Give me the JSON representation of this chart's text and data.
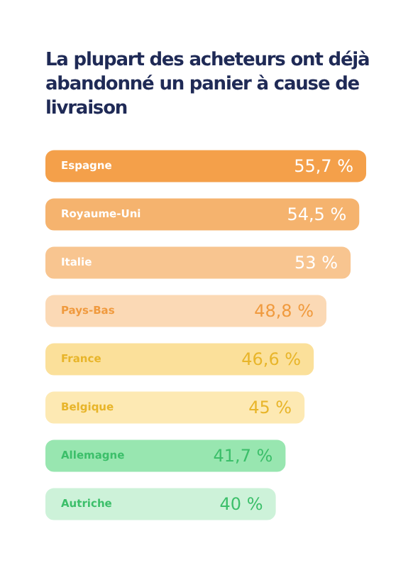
{
  "chart_data": {
    "type": "bar",
    "orientation": "horizontal",
    "title": "La plupart des acheteurs ont déjà abandonné un panier à cause de livraison",
    "categories": [
      "Espagne",
      "Royaume-Uni",
      "Italie",
      "Pays-Bas",
      "France",
      "Belgique",
      "Allemagne",
      "Autriche"
    ],
    "values": [
      55.7,
      54.5,
      53,
      48.8,
      46.6,
      45,
      41.7,
      40
    ],
    "value_labels": [
      "55,7 %",
      "54,5 %",
      "53 %",
      "48,8 %",
      "46,6 %",
      "45 %",
      "41,7 %",
      "40 %"
    ],
    "colors": [
      "#f4a04a",
      "#f5b36e",
      "#f8c590",
      "#fbd9b5",
      "#fbe09a",
      "#fde9b3",
      "#98e6b0",
      "#cdf2d9"
    ],
    "legend": false
  }
}
